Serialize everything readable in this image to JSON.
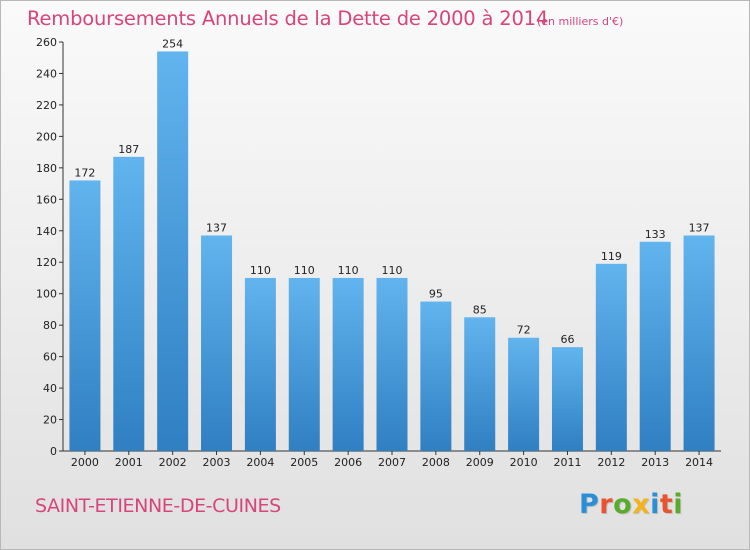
{
  "title": "Remboursements Annuels de la Dette de 2000 à 2014",
  "subtitle": "(en milliers d'€)",
  "commune": "SAINT-ETIENNE-DE-CUINES",
  "logo": {
    "text": "Proxiti",
    "letter_colors": [
      "#2a8fd6",
      "#e9542f",
      "#5aaa2b",
      "#f2b31c",
      "#2a8fd6",
      "#e9542f",
      "#5aaa2b"
    ]
  },
  "colors": {
    "bar_top": "#62b4ee",
    "bar_bottom": "#2f7fc2",
    "title": "#d8457a",
    "axis": "#333333"
  },
  "chart_data": {
    "type": "bar",
    "categories": [
      "2000",
      "2001",
      "2002",
      "2003",
      "2004",
      "2005",
      "2006",
      "2007",
      "2008",
      "2009",
      "2010",
      "2011",
      "2012",
      "2013",
      "2014"
    ],
    "values": [
      172,
      187,
      254,
      137,
      110,
      110,
      110,
      110,
      95,
      85,
      72,
      66,
      119,
      133,
      137
    ],
    "data_labels": [
      "172",
      "187",
      "254",
      "137",
      "110",
      "110",
      "110",
      "110",
      "95",
      "85",
      "72",
      "66",
      "119",
      "133",
      "137"
    ],
    "y_ticks": [
      "0",
      "20",
      "40",
      "60",
      "80",
      "100",
      "120",
      "140",
      "160",
      "180",
      "200",
      "220",
      "240",
      "260"
    ],
    "ylim": [
      0,
      260
    ],
    "grid": false
  }
}
